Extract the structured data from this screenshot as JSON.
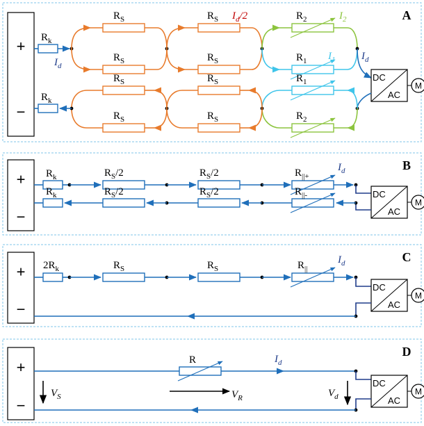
{
  "panels": [
    {
      "letter": "A"
    },
    {
      "letter": "B"
    },
    {
      "letter": "C"
    },
    {
      "letter": "D"
    }
  ],
  "symbols": {
    "plus": "+",
    "minus": "−",
    "dc": "DC",
    "ac": "AC",
    "motor": "M"
  },
  "labels": {
    "rk": {
      "main": "R",
      "sub": "k"
    },
    "rk2": {
      "main": "2R",
      "sub": "k"
    },
    "rs": {
      "main": "R",
      "sub": "S"
    },
    "rs_half": {
      "main": "R",
      "sub": "S",
      "suffix": "/2"
    },
    "r1": {
      "main": "R",
      "sub": "1"
    },
    "r2": {
      "main": "R",
      "sub": "2"
    },
    "rpar_plus": {
      "main": "R",
      "sub": "||+"
    },
    "rpar_minus": {
      "main": "R",
      "sub": "||-"
    },
    "rpar": {
      "main": "R",
      "sub": "||"
    },
    "r": {
      "main": "R"
    },
    "id": {
      "main": "I",
      "sub": "d"
    },
    "id_half": {
      "main": "I",
      "sub": "d",
      "suffix": "/2"
    },
    "i1": {
      "main": "I",
      "sub": "1"
    },
    "i2": {
      "main": "I",
      "sub": "2"
    },
    "vs": {
      "main": "V",
      "sub": "S"
    },
    "vr": {
      "main": "V",
      "sub": "R"
    },
    "vd": {
      "main": "V",
      "sub": "d"
    }
  },
  "colors": {
    "panel_border": "#7fc4ea",
    "series": "#1f6fba",
    "orange": "#e87b2c",
    "cyan": "#3fc5ea",
    "green": "#8cc43e",
    "red": "#c00000",
    "navy": "#1f3c8a",
    "black": "#000000"
  }
}
